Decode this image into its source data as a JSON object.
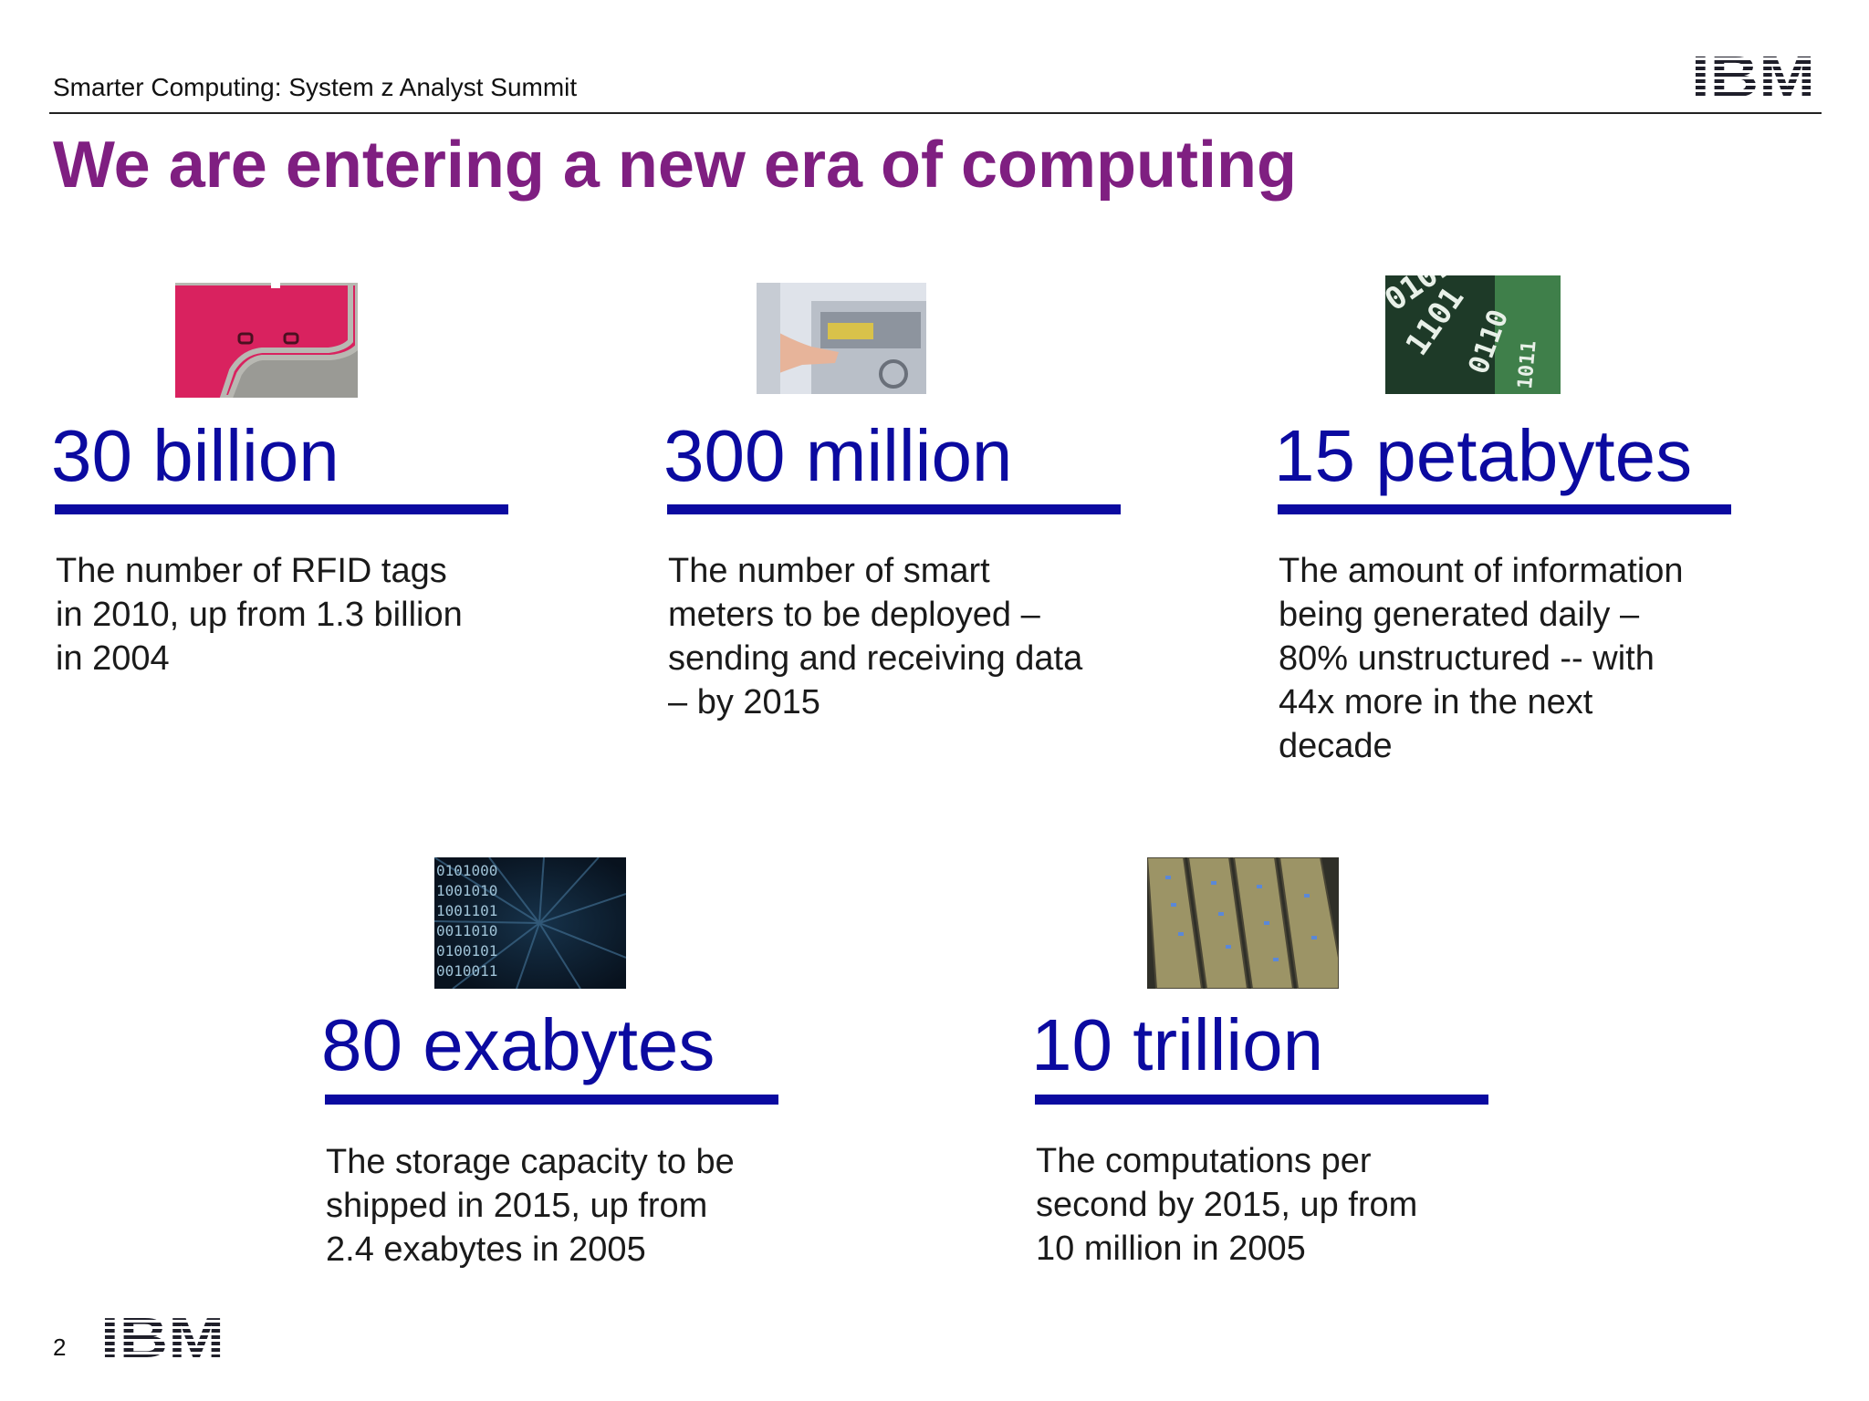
{
  "header": {
    "subtitle": "Smarter Computing: System z Analyst Summit",
    "logo_text": "IBM"
  },
  "title": "We are entering a new era of computing",
  "stats": [
    {
      "value": "30 billion",
      "description": "The number of RFID tags\nin 2010, up from 1.3 billion\nin 2004",
      "image": "rfid-tag-photo"
    },
    {
      "value": "300 million",
      "description": "The number of smart\nmeters to be deployed –\nsending and receiving data\n– by 2015",
      "image": "smart-meter-photo"
    },
    {
      "value": "15 petabytes",
      "description": "The amount of information\nbeing generated daily –\n80% unstructured --  with\n44x more in the next\ndecade",
      "image": "binary-digits-photo"
    },
    {
      "value": "80 exabytes",
      "description": "The storage capacity to be\nshipped in 2015, up from\n2.4 exabytes in 2005",
      "image": "binary-tunnel-photo"
    },
    {
      "value": "10 trillion",
      "description": "The computations per\nsecond by 2015, up from\n10 million in 2005",
      "image": "server-rack-photo"
    }
  ],
  "footer": {
    "page_number": "2",
    "logo_text": "IBM"
  },
  "colors": {
    "title": "#7f1f81",
    "accent": "#0b0aa0"
  }
}
